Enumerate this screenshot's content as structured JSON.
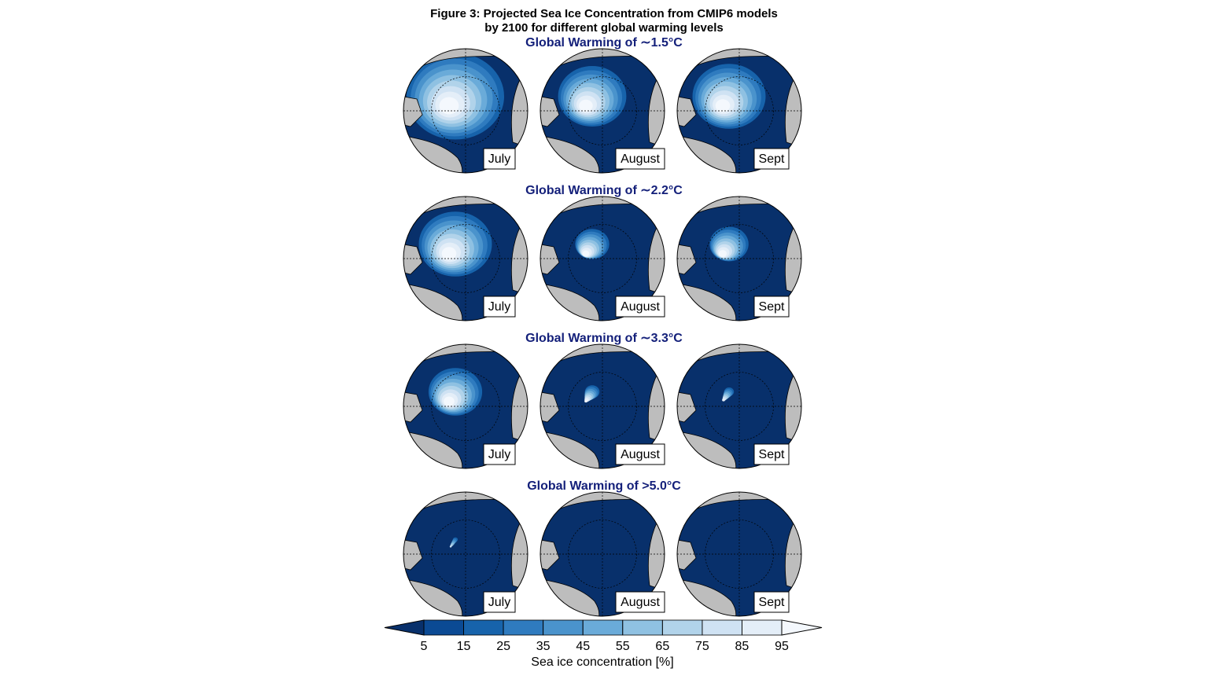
{
  "title": [
    "Figure 3: Projected Sea Ice Concentration from CMIP6 models",
    "by 2100 for different global warming levels"
  ],
  "rows": [
    {
      "title": "Global Warming of ∼1.5°C",
      "panels": [
        "July",
        "August",
        "Sept"
      ]
    },
    {
      "title": "Global Warming of ∼2.2°C",
      "panels": [
        "July",
        "August",
        "Sept"
      ]
    },
    {
      "title": "Global Warming of ∼3.3°C",
      "panels": [
        "July",
        "August",
        "Sept"
      ]
    },
    {
      "title": "Global Warming of >5.0°C",
      "panels": [
        "July",
        "August",
        "Sept"
      ]
    }
  ],
  "colorbar": {
    "label": "Sea ice concentration [%]",
    "ticks": [
      5,
      15,
      25,
      35,
      45,
      55,
      65,
      75,
      85,
      95
    ],
    "colors": [
      "#08306b",
      "#0b4a94",
      "#1763ab",
      "#2f7bbf",
      "#4a93cc",
      "#6aabd9",
      "#8fc1e2",
      "#b1d3ea",
      "#cfe2f3",
      "#e4eef8",
      "#f4f8fd"
    ]
  }
}
